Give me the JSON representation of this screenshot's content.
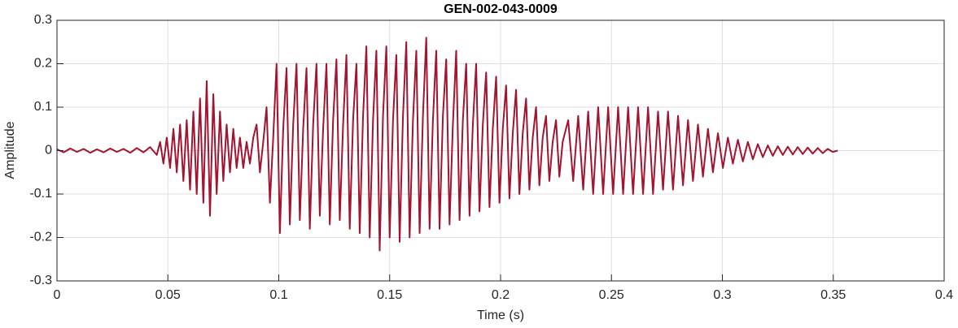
{
  "chart_data": {
    "type": "line",
    "title": "GEN-002-043-0009",
    "xlabel": "Time (s)",
    "ylabel": "Amplitude",
    "xlim": [
      0,
      0.4
    ],
    "ylim": [
      -0.3,
      0.3
    ],
    "xticks": [
      0,
      0.05,
      0.1,
      0.15,
      0.2,
      0.25,
      0.3,
      0.35,
      0.4
    ],
    "yticks": [
      -0.3,
      -0.2,
      -0.1,
      0,
      0.1,
      0.2,
      0.3
    ],
    "grid": true,
    "x": [
      0,
      0.003,
      0.006,
      0.009,
      0.012,
      0.015,
      0.018,
      0.021,
      0.024,
      0.027,
      0.03,
      0.033,
      0.036,
      0.039,
      0.042,
      0.045,
      0.0465,
      0.048,
      0.0495,
      0.051,
      0.0525,
      0.054,
      0.0555,
      0.057,
      0.0585,
      0.06,
      0.0615,
      0.063,
      0.0645,
      0.066,
      0.0675,
      0.069,
      0.0705,
      0.072,
      0.0735,
      0.075,
      0.0765,
      0.078,
      0.0795,
      0.081,
      0.0825,
      0.084,
      0.0855,
      0.087,
      0.0885,
      0.09,
      0.0915,
      0.093,
      0.0945,
      0.096,
      0.0975,
      0.099,
      0.1005,
      0.102,
      0.1035,
      0.105,
      0.1065,
      0.108,
      0.1095,
      0.111,
      0.1125,
      0.114,
      0.1155,
      0.117,
      0.1185,
      0.12,
      0.1215,
      0.123,
      0.1245,
      0.126,
      0.1275,
      0.129,
      0.1305,
      0.132,
      0.1335,
      0.135,
      0.1365,
      0.138,
      0.1395,
      0.141,
      0.1425,
      0.144,
      0.1455,
      0.147,
      0.1485,
      0.15,
      0.1515,
      0.153,
      0.1545,
      0.156,
      0.1575,
      0.159,
      0.1605,
      0.162,
      0.1635,
      0.165,
      0.1665,
      0.168,
      0.1695,
      0.171,
      0.1725,
      0.174,
      0.1755,
      0.177,
      0.1785,
      0.18,
      0.1815,
      0.183,
      0.1845,
      0.186,
      0.1875,
      0.189,
      0.1905,
      0.192,
      0.1935,
      0.195,
      0.1965,
      0.198,
      0.1995,
      0.201,
      0.2025,
      0.204,
      0.2055,
      0.207,
      0.2085,
      0.21,
      0.2115,
      0.213,
      0.2145,
      0.216,
      0.2175,
      0.219,
      0.2205,
      0.222,
      0.2235,
      0.225,
      0.2265,
      0.228,
      0.2305,
      0.23275,
      0.235,
      0.23725,
      0.2395,
      0.24175,
      0.244,
      0.24625,
      0.2485,
      0.25075,
      0.253,
      0.25525,
      0.2575,
      0.25975,
      0.262,
      0.26425,
      0.2665,
      0.26875,
      0.271,
      0.27325,
      0.2755,
      0.27775,
      0.28,
      0.28225,
      0.2845,
      0.28675,
      0.289,
      0.29125,
      0.2935,
      0.29575,
      0.298,
      0.30025,
      0.3025,
      0.30475,
      0.307,
      0.30925,
      0.3115,
      0.31375,
      0.316,
      0.31825,
      0.3205,
      0.32275,
      0.325,
      0.32725,
      0.3295,
      0.33175,
      0.334,
      0.33625,
      0.3385,
      0.34075,
      0.343,
      0.34525,
      0.3475,
      0.34975,
      0.352
    ],
    "series": [
      {
        "color": "#a2142f",
        "values": [
          0.003,
          -0.004,
          0.005,
          -0.003,
          0.004,
          -0.005,
          0.003,
          -0.004,
          0.005,
          -0.003,
          0.004,
          -0.005,
          0.006,
          -0.004,
          0.008,
          -0.01,
          0.02,
          -0.03,
          0.03,
          -0.04,
          0.05,
          -0.05,
          0.06,
          -0.07,
          0.07,
          -0.09,
          0.09,
          -0.1,
          0.12,
          -0.12,
          0.16,
          -0.15,
          0.13,
          -0.1,
          0.09,
          -0.07,
          0.06,
          -0.05,
          0.05,
          -0.04,
          0.03,
          -0.04,
          0.02,
          -0.03,
          0.03,
          0.06,
          -0.05,
          0.02,
          0.1,
          -0.12,
          0.03,
          0.2,
          -0.19,
          0.05,
          0.19,
          -0.17,
          0.06,
          0.2,
          -0.16,
          0.05,
          0.19,
          -0.18,
          0.06,
          0.2,
          -0.15,
          0.05,
          0.2,
          -0.17,
          0.07,
          0.21,
          -0.16,
          0.06,
          0.22,
          -0.18,
          0.07,
          0.2,
          -0.19,
          0.08,
          0.24,
          -0.2,
          0.07,
          0.23,
          -0.23,
          0.08,
          0.24,
          -0.2,
          0.07,
          0.22,
          -0.21,
          0.08,
          0.25,
          -0.2,
          0.07,
          0.23,
          -0.19,
          0.08,
          0.26,
          -0.18,
          0.07,
          0.23,
          -0.18,
          0.08,
          0.21,
          -0.17,
          0.06,
          0.23,
          -0.16,
          0.07,
          0.2,
          -0.15,
          0.06,
          0.2,
          -0.14,
          0.06,
          0.18,
          -0.13,
          0.05,
          0.17,
          -0.12,
          0.05,
          0.15,
          -0.11,
          0.04,
          0.14,
          -0.1,
          0.04,
          0.12,
          -0.09,
          0.03,
          0.1,
          -0.08,
          0.03,
          0.08,
          -0.07,
          0.02,
          0.07,
          -0.06,
          0.02,
          0.07,
          -0.07,
          0.08,
          -0.09,
          0.09,
          -0.1,
          0.1,
          -0.1,
          0.1,
          -0.1,
          0.1,
          -0.1,
          0.1,
          -0.1,
          0.1,
          -0.1,
          0.1,
          -0.1,
          0.09,
          -0.09,
          0.09,
          -0.09,
          0.08,
          -0.08,
          0.07,
          -0.07,
          0.06,
          -0.06,
          0.05,
          -0.05,
          0.04,
          -0.04,
          0.03,
          -0.03,
          0.025,
          -0.025,
          0.02,
          -0.02,
          0.015,
          -0.015,
          0.012,
          -0.012,
          0.01,
          -0.01,
          0.009,
          -0.009,
          0.008,
          -0.008,
          0.007,
          -0.007,
          0.006,
          -0.006,
          0.004,
          -0.003,
          0
        ]
      }
    ]
  }
}
